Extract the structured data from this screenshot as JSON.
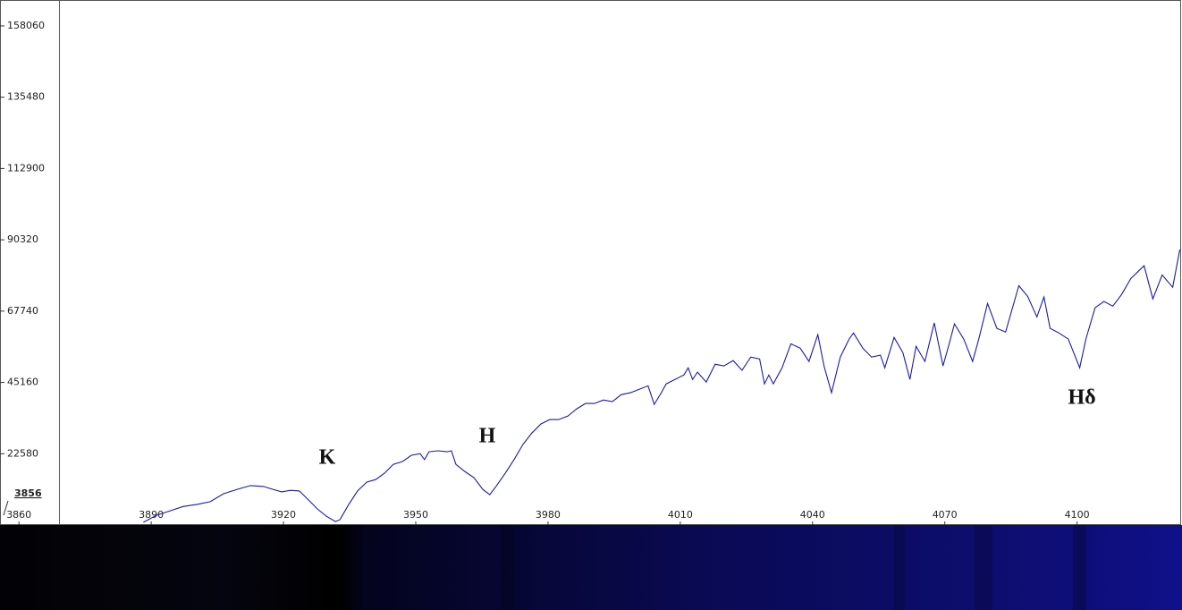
{
  "chart_data": {
    "type": "line",
    "color": "#1a1ab0",
    "x_start_label": "3856",
    "annotations": [
      "K",
      "H",
      "Hδ"
    ],
    "xlim": [
      3855.7,
      4123.4
    ],
    "xticks": [
      3860,
      3890,
      3920,
      3950,
      3980,
      4010,
      4040,
      4070,
      4100
    ],
    "ylim": [
      0,
      165700
    ],
    "yticks": [
      22580,
      45160,
      67740,
      90320,
      112900,
      135480,
      158060
    ],
    "x": [
      3888.2,
      3891.2,
      3894.3,
      3897.3,
      3900.3,
      3903.4,
      3906.4,
      3909.5,
      3912.5,
      3915.5,
      3917.6,
      3919.6,
      3921.6,
      3923.6,
      3925.7,
      3927.7,
      3929.7,
      3931.8,
      3932.8,
      3934.8,
      3936.8,
      3938.9,
      3940.9,
      3942.9,
      3944.9,
      3947.0,
      3949.0,
      3951.0,
      3952.0,
      3953.0,
      3955.1,
      3957.1,
      3958.1,
      3959.1,
      3961.1,
      3963.2,
      3965.2,
      3966.8,
      3968.2,
      3970.3,
      3972.3,
      3974.3,
      3976.3,
      3978.4,
      3980.4,
      3982.4,
      3984.5,
      3986.5,
      3988.5,
      3990.5,
      3992.6,
      3994.6,
      3996.6,
      3998.7,
      4000.7,
      4002.7,
      4004.1,
      4005.7,
      4006.8,
      4008.8,
      4010.8,
      4011.8,
      4012.8,
      4013.9,
      4015.9,
      4017.9,
      4019.9,
      4022.0,
      4024.0,
      4026.0,
      4028.0,
      4029.1,
      4030.1,
      4031.1,
      4033.1,
      4035.1,
      4037.2,
      4039.2,
      4041.2,
      4042.6,
      4044.3,
      4046.3,
      4048.3,
      4049.3,
      4051.4,
      4053.4,
      4055.4,
      4056.4,
      4058.5,
      4060.5,
      4062.1,
      4063.5,
      4065.5,
      4067.6,
      4069.6,
      4071.0,
      4072.2,
      4074.3,
      4076.3,
      4077.7,
      4079.7,
      4081.8,
      4083.8,
      4086.8,
      4088.8,
      4090.9,
      4092.5,
      4093.9,
      4095.9,
      4098.0,
      4100.6,
      4102.0,
      4104.1,
      4106.1,
      4108.1,
      4110.1,
      4112.2,
      4115.2,
      4117.2,
      4119.3,
      4121.7,
      4123.3
    ],
    "values": [
      850,
      3100,
      4500,
      5900,
      6500,
      7400,
      9900,
      11300,
      12500,
      12200,
      11300,
      10500,
      11000,
      10800,
      7900,
      5100,
      2800,
      1100,
      1700,
      6500,
      10800,
      13600,
      14400,
      16400,
      19200,
      20100,
      22100,
      22600,
      20700,
      23200,
      23500,
      23200,
      23500,
      19200,
      17000,
      15000,
      11300,
      9600,
      12200,
      16400,
      20700,
      25500,
      29100,
      32000,
      33400,
      33400,
      34500,
      36800,
      38500,
      38500,
      39600,
      39100,
      41300,
      41900,
      43000,
      44100,
      38200,
      41900,
      44700,
      46100,
      47500,
      49800,
      46100,
      48400,
      45300,
      50900,
      50400,
      52100,
      49000,
      53200,
      52600,
      44700,
      47500,
      44700,
      49800,
      57400,
      56000,
      51800,
      60300,
      50400,
      41900,
      53200,
      58900,
      60800,
      56000,
      53200,
      53800,
      49800,
      59400,
      54600,
      46100,
      56600,
      51800,
      64000,
      50400,
      57400,
      63700,
      58900,
      51800,
      58900,
      70200,
      62300,
      61100,
      75800,
      72400,
      65900,
      72200,
      62300,
      60800,
      58900,
      49800,
      58900,
      68800,
      70800,
      69300,
      73000,
      78100,
      82100,
      71600,
      79200,
      75300,
      87200
    ]
  }
}
